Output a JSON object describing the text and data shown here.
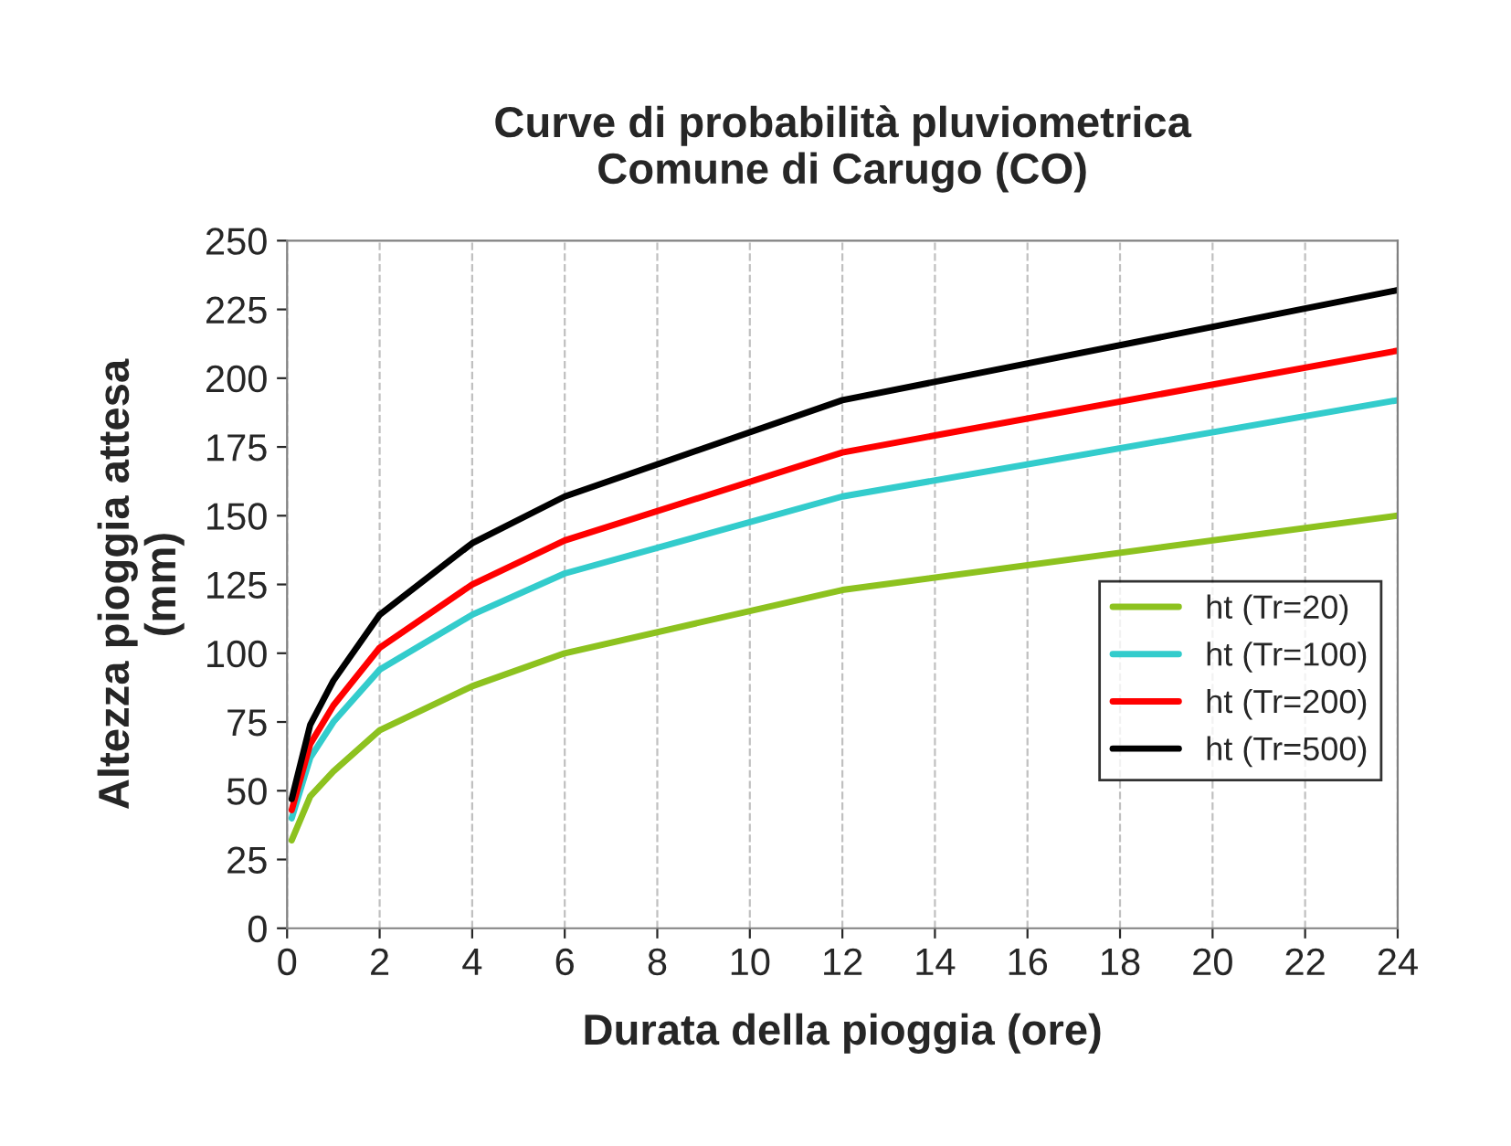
{
  "chart_data": {
    "type": "line",
    "title": "Curve di probabilità pluviometrica\nComune di Carugo (CO)",
    "xlabel": "Durata della pioggia (ore)",
    "ylabel": "Altezza pioggia attesa\n(mm)",
    "x": [
      0.1,
      0.5,
      1,
      2,
      4,
      6,
      12,
      24
    ],
    "series": [
      {
        "name": "ht (Tr=20)",
        "color": "#8dc21f",
        "values": [
          32,
          48,
          57,
          72,
          88,
          100,
          123,
          150
        ]
      },
      {
        "name": "ht (Tr=100)",
        "color": "#33cccc",
        "values": [
          40,
          62,
          75,
          94,
          114,
          129,
          157,
          192
        ]
      },
      {
        "name": "ht (Tr=200)",
        "color": "#ff0000",
        "values": [
          43,
          67,
          81,
          102,
          125,
          141,
          173,
          210
        ]
      },
      {
        "name": "ht (Tr=500)",
        "color": "#000000",
        "values": [
          47,
          74,
          90,
          114,
          140,
          157,
          192,
          232
        ]
      }
    ],
    "xlim": [
      0,
      24
    ],
    "xticks": [
      0,
      2,
      4,
      6,
      8,
      10,
      12,
      14,
      16,
      18,
      20,
      22,
      24
    ],
    "ylim": [
      0,
      250
    ],
    "yticks": [
      0,
      25,
      50,
      75,
      100,
      125,
      150,
      175,
      200,
      225,
      250
    ],
    "grid": "x",
    "legend": "center right",
    "marker": "none",
    "line_style": "solid"
  }
}
